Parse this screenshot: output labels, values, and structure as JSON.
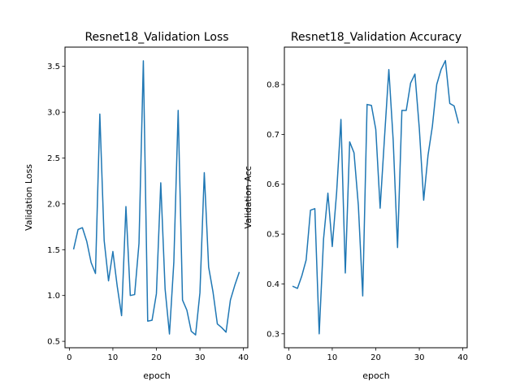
{
  "chart_data": [
    {
      "type": "line",
      "title": "Resnet18_Validation Loss",
      "xlabel": "epoch",
      "ylabel": "Validation Loss",
      "xlim": [
        -1,
        41
      ],
      "ylim": [
        0.43,
        3.71
      ],
      "xticks": [
        0,
        10,
        20,
        30,
        40
      ],
      "yticks": [
        0.5,
        1.0,
        1.5,
        2.0,
        2.5,
        3.0,
        3.5
      ],
      "ytick_labels": [
        "0.5",
        "1.0",
        "1.5",
        "2.0",
        "2.5",
        "3.0",
        "3.5"
      ],
      "color": "#1f77b4",
      "series": [
        {
          "x": [
            1,
            2,
            3,
            4,
            5,
            6,
            7,
            8,
            9,
            10,
            11,
            12,
            13,
            14,
            15,
            16,
            17,
            18,
            19,
            20,
            21,
            22,
            23,
            24,
            25,
            26,
            27,
            28,
            29,
            30,
            31,
            32,
            33,
            34,
            35,
            36,
            37,
            38,
            39
          ],
          "values": [
            1.51,
            1.72,
            1.74,
            1.59,
            1.36,
            1.24,
            2.98,
            1.6,
            1.16,
            1.48,
            1.1,
            0.78,
            1.97,
            1.0,
            1.01,
            1.57,
            3.56,
            0.72,
            0.73,
            1.02,
            2.23,
            1.07,
            0.58,
            1.36,
            3.02,
            0.95,
            0.84,
            0.61,
            0.57,
            1.03,
            2.34,
            1.31,
            1.04,
            0.69,
            0.65,
            0.6,
            0.95,
            1.11,
            1.25
          ]
        }
      ]
    },
    {
      "type": "line",
      "title": "Resnet18_Validation Accuracy",
      "xlabel": "epoch",
      "ylabel": "Validation Acc",
      "xlim": [
        -1,
        41
      ],
      "ylim": [
        0.272,
        0.875
      ],
      "xticks": [
        0,
        10,
        20,
        30,
        40
      ],
      "yticks": [
        0.3,
        0.4,
        0.5,
        0.6,
        0.7,
        0.8
      ],
      "ytick_labels": [
        "0.3",
        "0.4",
        "0.5",
        "0.6",
        "0.7",
        "0.8"
      ],
      "color": "#1f77b4",
      "series": [
        {
          "x": [
            1,
            2,
            3,
            4,
            5,
            6,
            7,
            8,
            9,
            10,
            11,
            12,
            13,
            14,
            15,
            16,
            17,
            18,
            19,
            20,
            21,
            22,
            23,
            24,
            25,
            26,
            27,
            28,
            29,
            30,
            31,
            32,
            33,
            34,
            35,
            36,
            37,
            38,
            39
          ],
          "values": [
            0.395,
            0.391,
            0.416,
            0.448,
            0.548,
            0.551,
            0.3,
            0.49,
            0.582,
            0.475,
            0.583,
            0.73,
            0.422,
            0.685,
            0.663,
            0.557,
            0.376,
            0.76,
            0.758,
            0.71,
            0.552,
            0.693,
            0.83,
            0.688,
            0.473,
            0.748,
            0.748,
            0.803,
            0.821,
            0.712,
            0.568,
            0.658,
            0.716,
            0.8,
            0.83,
            0.848,
            0.762,
            0.757,
            0.723
          ]
        }
      ]
    }
  ]
}
